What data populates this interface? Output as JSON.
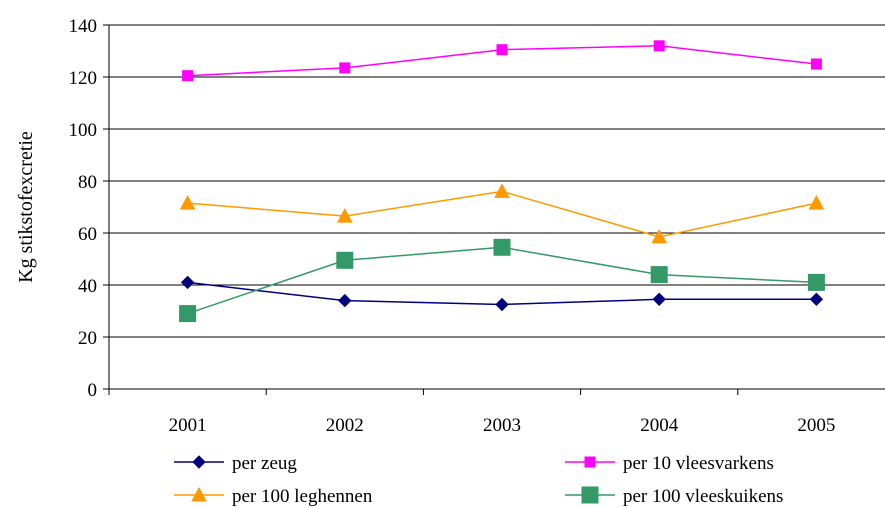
{
  "chart_data": {
    "type": "line",
    "categories": [
      "2001",
      "2002",
      "2003",
      "2004",
      "2005"
    ],
    "ylabel": "Kg stikstofexcretie",
    "xlabel": "",
    "ylim": [
      0,
      140
    ],
    "yticks": [
      0,
      20,
      40,
      60,
      80,
      100,
      120,
      140
    ],
    "grid": "horizontal",
    "legend_position": "bottom",
    "series": [
      {
        "name": "per zeug",
        "values": [
          41,
          34,
          32.5,
          34.5,
          34.5
        ],
        "color": "#000080",
        "marker": "diamond"
      },
      {
        "name": "per 10 vleesvarkens",
        "values": [
          120.5,
          123.5,
          130.5,
          132,
          125
        ],
        "color": "#FF00FF",
        "marker": "square"
      },
      {
        "name": "per 100 leghennen",
        "values": [
          71.5,
          66.5,
          76,
          58.5,
          71.5
        ],
        "color": "#FF9900",
        "marker": "triangle"
      },
      {
        "name": "per 100 vleeskuikens",
        "values": [
          29,
          49.5,
          54.5,
          44,
          41
        ],
        "color": "#339966",
        "marker": "square-large"
      }
    ]
  }
}
